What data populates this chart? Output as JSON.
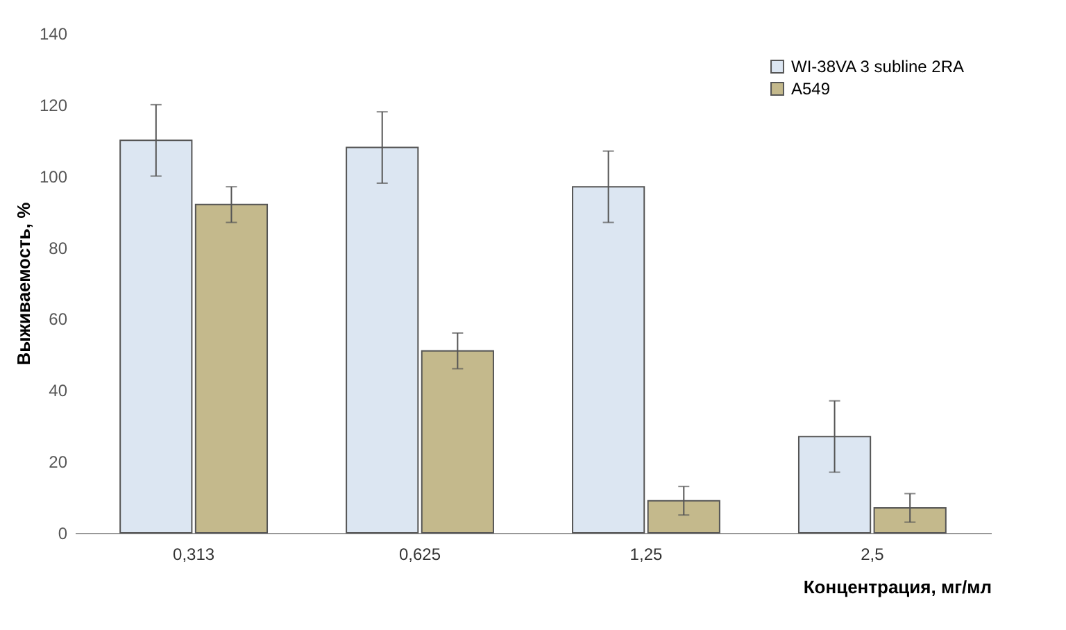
{
  "chart_data": {
    "type": "bar",
    "xlabel": "Концентрация, мг/мл",
    "ylabel": "Выживаемость, %",
    "categories": [
      "0,313",
      "0,625",
      "1,25",
      "2,5"
    ],
    "series": [
      {
        "name": "WI-38VA 3 subline 2RA",
        "color": "#dce6f2",
        "values": [
          110,
          108,
          97,
          27
        ],
        "errors": [
          10,
          10,
          10,
          10
        ]
      },
      {
        "name": "A549",
        "color": "#c4b98c",
        "values": [
          92,
          51,
          9,
          7
        ],
        "errors": [
          5,
          5,
          4,
          4
        ]
      }
    ],
    "ylim": [
      0,
      140
    ],
    "yticks": [
      0,
      20,
      40,
      60,
      80,
      100,
      120,
      140
    ],
    "grid": false,
    "legend": "top right"
  }
}
